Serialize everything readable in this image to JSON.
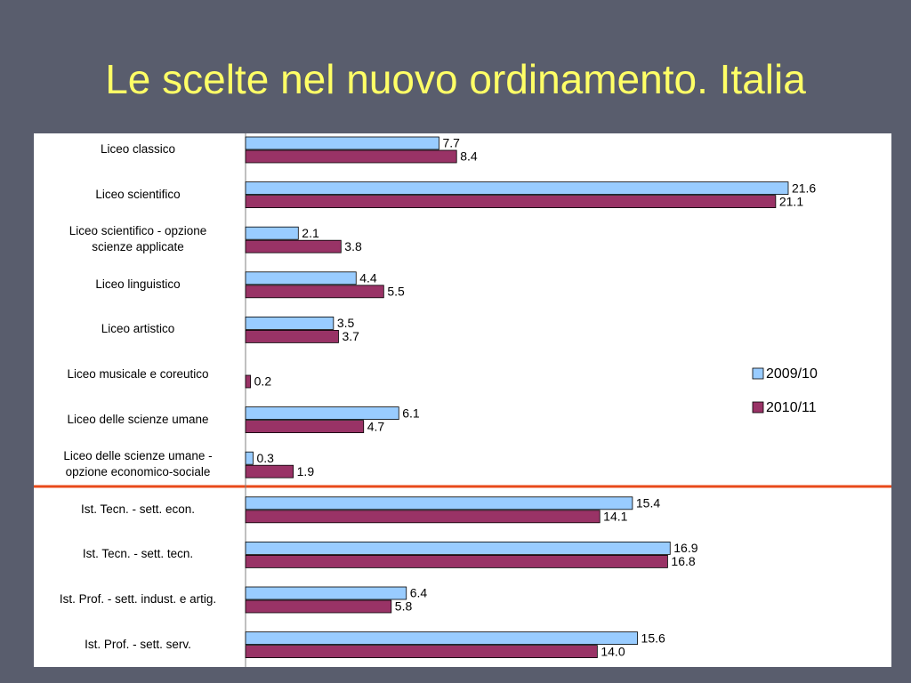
{
  "chart_data": {
    "type": "hbar",
    "title": "Le scelte nel nuovo ordinamento. Italia",
    "categories": [
      "Liceo classico",
      "Liceo scientifico",
      "Liceo scientifico -  opzione\nscienze applicate",
      "Liceo linguistico",
      "Liceo artistico",
      "Liceo musicale e coreutico",
      "Liceo delle scienze umane",
      "Liceo delle scienze umane  -\nopzione economico-sociale",
      "Ist. Tecn. - sett. econ.",
      "Ist. Tecn. - sett. tecn.",
      "Ist. Prof. - sett. indust. e artig.",
      "Ist. Prof. - sett. serv."
    ],
    "series": [
      {
        "name": "2009/10",
        "color": "#99ccff",
        "values": [
          7.7,
          21.6,
          2.1,
          4.4,
          3.5,
          null,
          6.1,
          0.3,
          15.4,
          16.9,
          6.4,
          15.6
        ],
        "value_labels": [
          "7.7",
          "21.6",
          "2.1",
          "4.4",
          "3.5",
          null,
          "6.1",
          "0.3",
          "15.4",
          "16.9",
          "6.4",
          "15.6"
        ]
      },
      {
        "name": "2010/11",
        "color": "#993366",
        "values": [
          8.4,
          21.1,
          3.8,
          5.5,
          3.7,
          0.2,
          4.7,
          1.9,
          14.1,
          16.8,
          5.8,
          14.0
        ],
        "value_labels": [
          "8.4",
          "21.1",
          "3.8",
          "5.5",
          "3.7",
          "0.2",
          "4.7",
          "1.9",
          "14.1",
          "16.8",
          "5.8",
          "14.0"
        ]
      }
    ],
    "xlim": [
      0,
      25
    ],
    "legend": "right"
  }
}
